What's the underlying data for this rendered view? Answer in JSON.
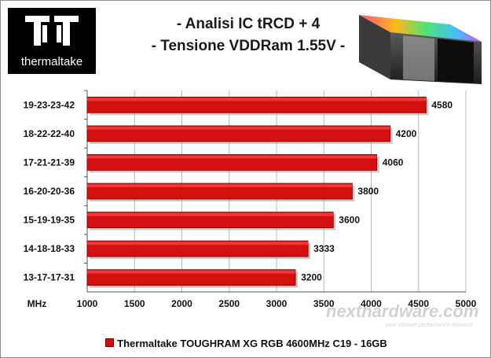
{
  "brand": {
    "name": "thermaltake",
    "watermark": "nexthardware.com",
    "watermark_tagline": "your ultimate performance resource"
  },
  "chart_data": {
    "type": "bar",
    "orientation": "horizontal",
    "title": "- Analisi IC  tRCD + 4",
    "subtitle": "- Tensione VDDRam 1.55V -",
    "categories": [
      "19-23-23-42",
      "18-22-22-40",
      "17-21-21-39",
      "16-20-20-36",
      "15-19-19-35",
      "14-18-18-33",
      "13-17-17-31"
    ],
    "series": [
      {
        "name": "Thermaltake TOUGHRAM XG RGB 4600MHz C19 - 16GB",
        "values": [
          4580,
          4200,
          4060,
          3800,
          3600,
          3333,
          3200
        ],
        "color": "#d40f0f"
      }
    ],
    "xlabel": "MHz",
    "ylabel": "",
    "xlim": [
      1000,
      5000
    ],
    "xticks": [
      1000,
      1500,
      2000,
      2500,
      3000,
      3500,
      4000,
      4500,
      5000
    ],
    "grid": true,
    "legend_position": "bottom"
  }
}
